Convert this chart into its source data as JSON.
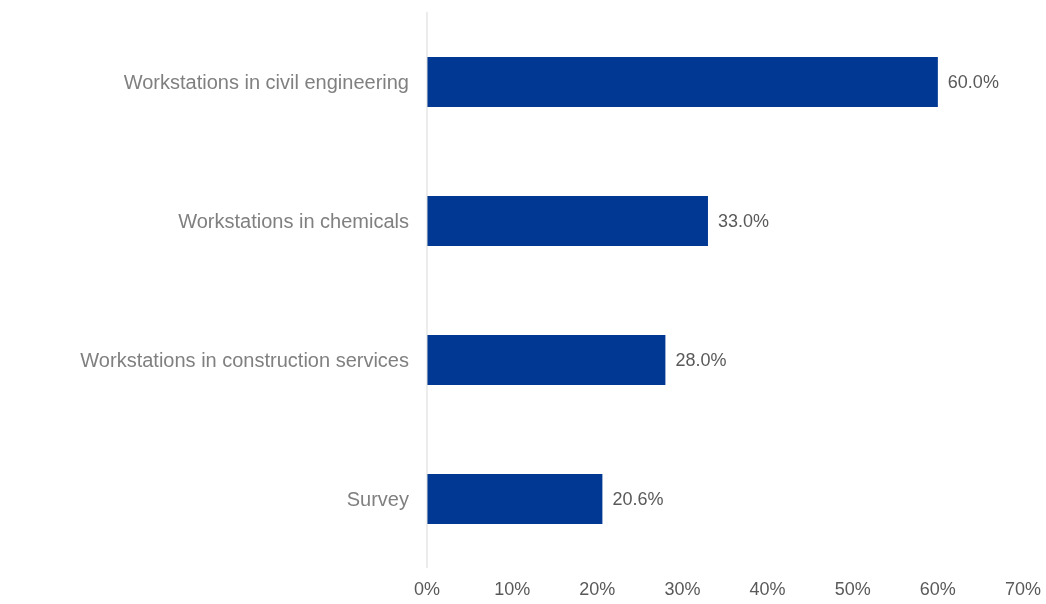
{
  "chart_data": {
    "type": "bar",
    "orientation": "horizontal",
    "categories": [
      "Workstations in civil engineering",
      "Workstations in chemicals",
      "Workstations in construction services",
      "Survey"
    ],
    "values": [
      60.0,
      33.0,
      28.0,
      20.6
    ],
    "value_labels": [
      "60.0%",
      "33.0%",
      "28.0%",
      "20.6%"
    ],
    "color": "#003893",
    "xlim": [
      0,
      70
    ],
    "xticks": [
      {
        "value": 0,
        "label": "0%"
      },
      {
        "value": 10,
        "label": "10%"
      },
      {
        "value": 20,
        "label": "20%"
      },
      {
        "value": 30,
        "label": "30%"
      },
      {
        "value": 40,
        "label": "40%"
      },
      {
        "value": 50,
        "label": "50%"
      },
      {
        "value": 60,
        "label": "60%"
      },
      {
        "value": 70,
        "label": "70%"
      }
    ]
  }
}
